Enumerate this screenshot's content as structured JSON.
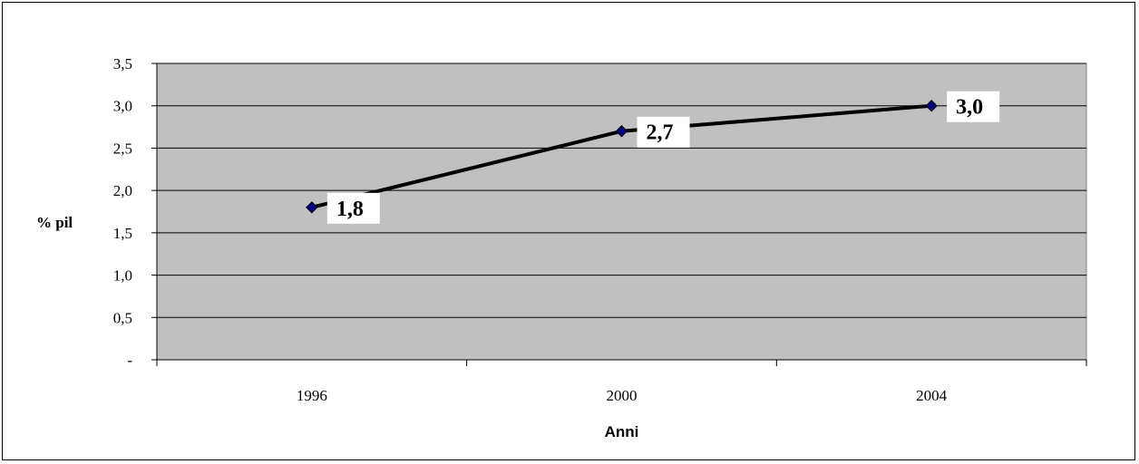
{
  "chart_data": {
    "type": "line",
    "x": [
      "1996",
      "2000",
      "2004"
    ],
    "series": [
      {
        "values": [
          1.8,
          2.7,
          3.0
        ]
      }
    ],
    "data_labels": [
      "1,8",
      "2,7",
      "3,0"
    ],
    "xlabel": "Anni",
    "ylabel": "% pil",
    "ylim": [
      0,
      3.5
    ],
    "yticks": [
      0,
      0.5,
      1.0,
      1.5,
      2.0,
      2.5,
      3.0,
      3.5
    ],
    "ytick_labels": [
      "-",
      "0,5",
      "1,0",
      "1,5",
      "2,0",
      "2,5",
      "3,0",
      "3,5"
    ],
    "grid": true,
    "legend": "none",
    "colors": {
      "plot_background": "#c0c0c0",
      "line": "#000000",
      "marker": "#000080",
      "label_box": "#ffffff"
    }
  }
}
